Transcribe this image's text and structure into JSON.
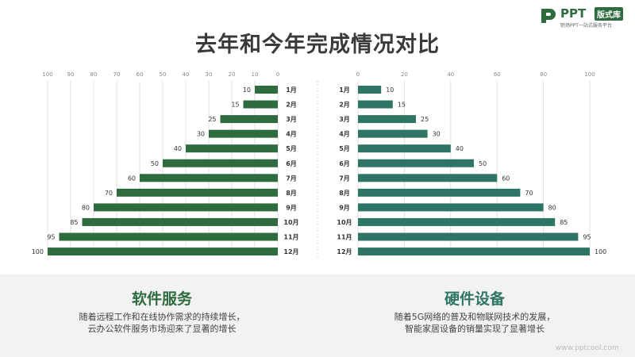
{
  "page": {
    "title": "去年和今年完成情况对比"
  },
  "logo": {
    "brand": "PPT",
    "tag": "版式库",
    "subtitle": "职场PPT一站式服务平台"
  },
  "colors": {
    "left_bar": "#2e6b3e",
    "right_bar": "#2e7566",
    "left_heading": "#2e6b3e",
    "right_heading": "#2e7566",
    "grid": "#e0e0e0",
    "divider": "#cfcfcf"
  },
  "chart_data": [
    {
      "type": "bar",
      "orientation": "horizontal",
      "direction": "right-to-left",
      "categories": [
        "1月",
        "2月",
        "3月",
        "4月",
        "5月",
        "6月",
        "7月",
        "8月",
        "9月",
        "10月",
        "11月",
        "12月"
      ],
      "values": [
        10,
        15,
        25,
        30,
        40,
        50,
        60,
        70,
        80,
        85,
        95,
        100
      ],
      "xlim": [
        0,
        100
      ],
      "xticks": [
        100,
        90,
        80,
        70,
        60,
        50,
        40,
        30,
        20,
        10,
        0
      ],
      "grid": true
    },
    {
      "type": "bar",
      "orientation": "horizontal",
      "direction": "left-to-right",
      "categories": [
        "1月",
        "2月",
        "3月",
        "4月",
        "5月",
        "6月",
        "7月",
        "8月",
        "9月",
        "10月",
        "11月",
        "12月"
      ],
      "values": [
        10,
        15,
        25,
        30,
        40,
        50,
        60,
        70,
        80,
        85,
        95,
        100
      ],
      "xlim": [
        0,
        100
      ],
      "xticks": [
        0,
        20,
        40,
        60,
        80,
        100
      ],
      "grid": true
    }
  ],
  "panels": {
    "left": {
      "title": "软件服务",
      "line1": "随着远程工作和在线协作需求的持续增长，",
      "line2": "云办公软件服务市场迎来了显著的增长"
    },
    "right": {
      "title": "硬件设备",
      "line1": "随着5G网络的普及和物联网技术的发展，",
      "line2": "智能家居设备的销量实现了显著增长"
    }
  },
  "watermark": "www.pptcool.com"
}
